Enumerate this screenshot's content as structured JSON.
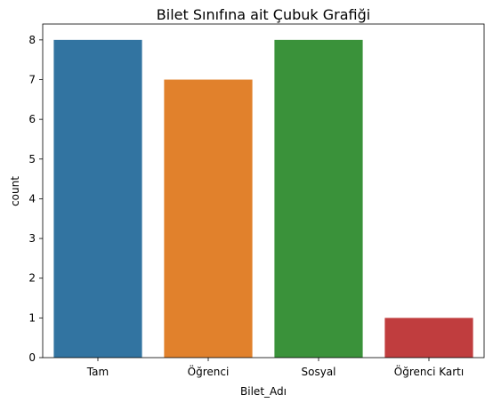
{
  "chart_data": {
    "type": "bar",
    "title": "Bilet Sınıfına ait Çubuk Grafiği",
    "xlabel": "Bilet_Adı",
    "ylabel": "count",
    "categories": [
      "Tam",
      "Öğrenci",
      "Sosyal",
      "Öğrenci Kartı"
    ],
    "values": [
      8,
      7,
      8,
      1
    ],
    "colors": [
      "#3274a1",
      "#e1812c",
      "#3a923a",
      "#c03d3e"
    ],
    "ylim": [
      0,
      8.4
    ],
    "yticks": [
      "0",
      "1",
      "2",
      "3",
      "4",
      "5",
      "6",
      "7",
      "8"
    ],
    "grid": false,
    "legend": "none"
  }
}
